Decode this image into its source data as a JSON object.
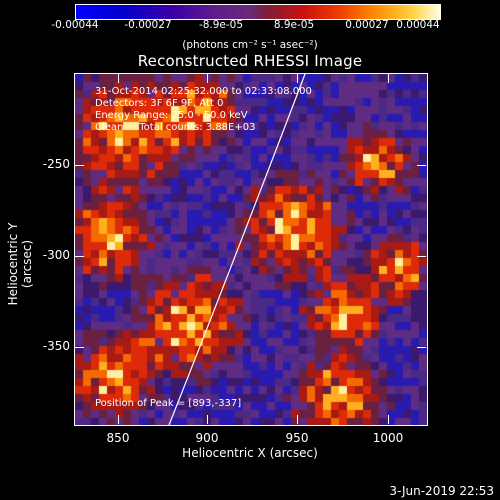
{
  "colorbar": {
    "ticks": [
      "-0.00044",
      "-0.00027",
      "-8.9e-05",
      "8.9e-05",
      "0.00027",
      "0.00044"
    ],
    "units": "(photons cm⁻² s⁻¹ asec⁻²)"
  },
  "title": "Reconstructed RHESSI Image",
  "info": {
    "time_range": "31-Oct-2014 02:25:32.000 to 02:33:08.000",
    "detectors": "Detectors: 3F 6F 9F, Att 0",
    "energy": "Energy Range: 25.0 - 50.0 keV",
    "clean": "Clean     Total counts: 3.88E+03",
    "peak": "Position of Peak = [893,-337]"
  },
  "axes": {
    "xlabel": "Heliocentric X (arcsec)",
    "ylabel": "Heliocentric Y (arcsec)",
    "xticks": [
      "850",
      "900",
      "950",
      "1000"
    ],
    "yticks": [
      "-250",
      "-300",
      "-350"
    ]
  },
  "timestamp": "3-Jun-2019 22:53"
}
